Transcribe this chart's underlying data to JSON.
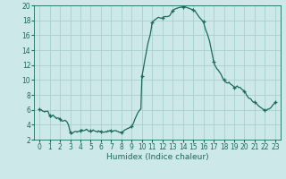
{
  "xlabel": "Humidex (Indice chaleur)",
  "background_color": "#cce8e8",
  "grid_color": "#aad0d0",
  "line_color": "#1a6b5a",
  "marker_color": "#1a6b5a",
  "xlim": [
    -0.5,
    23.5
  ],
  "ylim": [
    2,
    20
  ],
  "yticks": [
    2,
    4,
    6,
    8,
    10,
    12,
    14,
    16,
    18,
    20
  ],
  "xticks": [
    0,
    1,
    2,
    3,
    4,
    5,
    6,
    7,
    8,
    9,
    10,
    11,
    12,
    13,
    14,
    15,
    16,
    17,
    18,
    19,
    20,
    21,
    22,
    23
  ],
  "humidex_data": [
    [
      0.0,
      6.1
    ],
    [
      0.08,
      6.0
    ],
    [
      0.17,
      6.0
    ],
    [
      0.25,
      5.9
    ],
    [
      0.33,
      5.8
    ],
    [
      0.42,
      5.8
    ],
    [
      0.5,
      5.7
    ],
    [
      0.58,
      5.8
    ],
    [
      0.67,
      5.8
    ],
    [
      0.75,
      5.8
    ],
    [
      0.83,
      5.8
    ],
    [
      1.0,
      5.2
    ],
    [
      1.08,
      5.0
    ],
    [
      1.17,
      5.1
    ],
    [
      1.25,
      5.2
    ],
    [
      1.33,
      5.3
    ],
    [
      1.5,
      5.0
    ],
    [
      1.58,
      5.0
    ],
    [
      1.67,
      4.8
    ],
    [
      1.75,
      4.9
    ],
    [
      1.83,
      4.9
    ],
    [
      2.0,
      4.8
    ],
    [
      2.08,
      4.6
    ],
    [
      2.17,
      4.5
    ],
    [
      2.25,
      4.5
    ],
    [
      2.33,
      4.5
    ],
    [
      2.5,
      4.6
    ],
    [
      2.58,
      4.5
    ],
    [
      2.67,
      4.4
    ],
    [
      2.75,
      4.2
    ],
    [
      2.83,
      4.0
    ],
    [
      3.0,
      3.0
    ],
    [
      3.08,
      2.8
    ],
    [
      3.17,
      2.8
    ],
    [
      3.25,
      2.9
    ],
    [
      3.33,
      3.0
    ],
    [
      3.5,
      3.1
    ],
    [
      3.58,
      3.1
    ],
    [
      3.67,
      3.0
    ],
    [
      3.75,
      3.1
    ],
    [
      3.83,
      3.1
    ],
    [
      4.0,
      3.2
    ],
    [
      4.08,
      3.3
    ],
    [
      4.17,
      3.3
    ],
    [
      4.25,
      3.2
    ],
    [
      4.33,
      3.2
    ],
    [
      4.5,
      3.3
    ],
    [
      4.58,
      3.4
    ],
    [
      4.67,
      3.3
    ],
    [
      4.75,
      3.2
    ],
    [
      4.83,
      3.1
    ],
    [
      5.0,
      3.2
    ],
    [
      5.08,
      3.1
    ],
    [
      5.17,
      3.2
    ],
    [
      5.25,
      3.3
    ],
    [
      5.33,
      3.2
    ],
    [
      5.5,
      3.1
    ],
    [
      5.58,
      3.1
    ],
    [
      5.67,
      3.0
    ],
    [
      5.75,
      3.2
    ],
    [
      5.83,
      3.1
    ],
    [
      6.0,
      3.1
    ],
    [
      6.08,
      3.1
    ],
    [
      6.17,
      3.0
    ],
    [
      6.25,
      3.0
    ],
    [
      6.33,
      3.0
    ],
    [
      6.5,
      3.1
    ],
    [
      6.58,
      3.0
    ],
    [
      6.67,
      3.2
    ],
    [
      6.75,
      3.1
    ],
    [
      6.83,
      3.2
    ],
    [
      7.0,
      3.2
    ],
    [
      7.08,
      3.1
    ],
    [
      7.17,
      3.1
    ],
    [
      7.25,
      3.2
    ],
    [
      7.33,
      3.2
    ],
    [
      7.5,
      3.2
    ],
    [
      7.58,
      3.1
    ],
    [
      7.67,
      3.1
    ],
    [
      7.75,
      3.0
    ],
    [
      7.83,
      3.0
    ],
    [
      8.0,
      3.0
    ],
    [
      8.08,
      3.0
    ],
    [
      8.17,
      3.1
    ],
    [
      8.25,
      3.2
    ],
    [
      8.33,
      3.3
    ],
    [
      8.5,
      3.4
    ],
    [
      8.58,
      3.5
    ],
    [
      8.67,
      3.5
    ],
    [
      8.75,
      3.6
    ],
    [
      8.83,
      3.6
    ],
    [
      9.0,
      3.8
    ],
    [
      9.1,
      4.0
    ],
    [
      9.2,
      4.3
    ],
    [
      9.3,
      4.7
    ],
    [
      9.4,
      5.0
    ],
    [
      9.5,
      5.3
    ],
    [
      9.6,
      5.6
    ],
    [
      9.7,
      5.8
    ],
    [
      9.8,
      6.0
    ],
    [
      9.9,
      6.1
    ],
    [
      10.0,
      10.5
    ],
    [
      10.1,
      11.2
    ],
    [
      10.2,
      12.0
    ],
    [
      10.3,
      12.8
    ],
    [
      10.4,
      13.5
    ],
    [
      10.5,
      14.3
    ],
    [
      10.6,
      15.0
    ],
    [
      10.7,
      15.5
    ],
    [
      10.8,
      16.0
    ],
    [
      10.9,
      16.8
    ],
    [
      11.0,
      17.7
    ],
    [
      11.2,
      18.0
    ],
    [
      11.4,
      18.2
    ],
    [
      11.6,
      18.4
    ],
    [
      11.8,
      18.3
    ],
    [
      12.0,
      18.3
    ],
    [
      12.2,
      18.5
    ],
    [
      12.5,
      18.5
    ],
    [
      12.7,
      18.6
    ],
    [
      13.0,
      19.3
    ],
    [
      13.2,
      19.5
    ],
    [
      13.4,
      19.6
    ],
    [
      13.6,
      19.7
    ],
    [
      14.0,
      19.8
    ],
    [
      14.2,
      19.8
    ],
    [
      14.4,
      19.7
    ],
    [
      14.6,
      19.6
    ],
    [
      15.0,
      19.4
    ],
    [
      15.2,
      19.2
    ],
    [
      15.4,
      18.8
    ],
    [
      15.6,
      18.4
    ],
    [
      16.0,
      17.8
    ],
    [
      16.2,
      16.8
    ],
    [
      16.4,
      16.1
    ],
    [
      16.6,
      15.2
    ],
    [
      17.0,
      12.5
    ],
    [
      17.1,
      12.0
    ],
    [
      17.2,
      11.8
    ],
    [
      17.3,
      11.5
    ],
    [
      17.4,
      11.4
    ],
    [
      17.5,
      11.2
    ],
    [
      17.6,
      11.0
    ],
    [
      17.7,
      10.8
    ],
    [
      17.8,
      10.5
    ],
    [
      17.9,
      10.2
    ],
    [
      18.0,
      10.0
    ],
    [
      18.1,
      9.8
    ],
    [
      18.2,
      9.7
    ],
    [
      18.3,
      9.6
    ],
    [
      18.4,
      9.6
    ],
    [
      18.5,
      9.7
    ],
    [
      18.6,
      9.5
    ],
    [
      18.7,
      9.4
    ],
    [
      18.8,
      9.3
    ],
    [
      18.9,
      9.2
    ],
    [
      19.0,
      9.0
    ],
    [
      19.1,
      9.0
    ],
    [
      19.2,
      9.1
    ],
    [
      19.3,
      9.2
    ],
    [
      19.4,
      9.0
    ],
    [
      19.5,
      9.0
    ],
    [
      19.6,
      9.0
    ],
    [
      19.7,
      8.8
    ],
    [
      19.8,
      8.7
    ],
    [
      19.9,
      8.6
    ],
    [
      20.0,
      8.5
    ],
    [
      20.1,
      8.3
    ],
    [
      20.2,
      8.0
    ],
    [
      20.3,
      7.8
    ],
    [
      20.4,
      7.6
    ],
    [
      20.5,
      7.5
    ],
    [
      20.6,
      7.5
    ],
    [
      20.7,
      7.3
    ],
    [
      20.8,
      7.1
    ],
    [
      21.0,
      7.0
    ],
    [
      21.2,
      6.8
    ],
    [
      21.4,
      6.5
    ],
    [
      21.6,
      6.3
    ],
    [
      21.7,
      6.2
    ],
    [
      21.8,
      6.1
    ],
    [
      21.9,
      6.0
    ],
    [
      22.0,
      6.0
    ],
    [
      22.1,
      5.9
    ],
    [
      22.2,
      6.0
    ],
    [
      22.3,
      6.1
    ],
    [
      22.4,
      6.1
    ],
    [
      22.5,
      6.2
    ],
    [
      22.6,
      6.3
    ],
    [
      22.7,
      6.5
    ],
    [
      22.8,
      6.7
    ],
    [
      22.9,
      6.8
    ],
    [
      23.0,
      7.0
    ]
  ],
  "marker_x": [
    0,
    1,
    2,
    3,
    4,
    5,
    6,
    7,
    8,
    9,
    10,
    11,
    12,
    13,
    14,
    15,
    16,
    17,
    18,
    19,
    20,
    21,
    22,
    23
  ],
  "marker_y": [
    6.1,
    5.2,
    4.8,
    3.0,
    3.2,
    3.2,
    3.1,
    3.2,
    3.0,
    3.8,
    10.5,
    17.7,
    18.3,
    19.3,
    19.8,
    19.4,
    17.8,
    12.5,
    10.0,
    9.0,
    8.5,
    7.0,
    6.0,
    7.0
  ],
  "tick_fontsize": 5.5,
  "xlabel_fontsize": 6.5
}
